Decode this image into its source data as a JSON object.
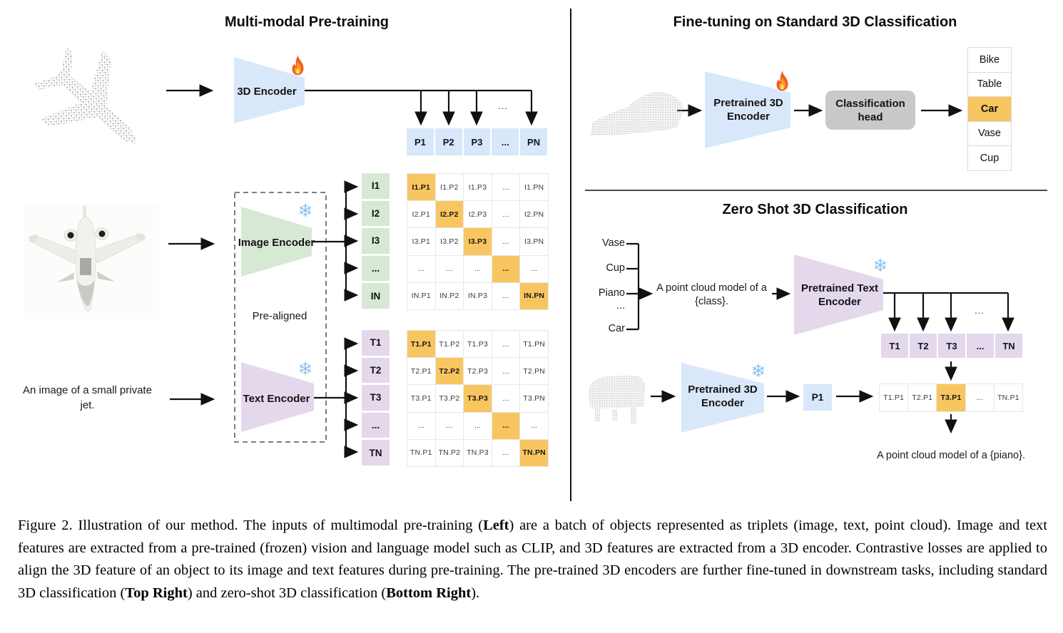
{
  "colors": {
    "blue": "#D9E7FA",
    "green": "#D7E8D5",
    "purple": "#E4D8EC",
    "highlight": "#F8C660",
    "head-gray": "#C9C9C9",
    "snow": "#8FC3ED"
  },
  "icons": {
    "snowflake": "❄"
  },
  "left": {
    "title": "Multi-modal Pre-training",
    "encoder3d_label": "3D Encoder",
    "image_encoder_label": "Image Encoder",
    "text_encoder_label": "Text Encoder",
    "prealigned_label": "Pre-aligned",
    "jet_caption": "An image of a small private jet.",
    "ellipsis": "...",
    "p_row": [
      "P1",
      "P2",
      "P3",
      "...",
      "PN"
    ],
    "i_labels": [
      "I1",
      "I2",
      "I3",
      "...",
      "IN"
    ],
    "t_labels": [
      "T1",
      "T2",
      "T3",
      "...",
      "TN"
    ],
    "i_matrix": [
      {
        "t": "I1.P1",
        "hl": true
      },
      {
        "t": "I1.P2"
      },
      {
        "t": "I1.P3"
      },
      {
        "t": "..."
      },
      {
        "t": "I1.PN"
      },
      {
        "t": "I2.P1"
      },
      {
        "t": "I2.P2",
        "hl": true
      },
      {
        "t": "I2.P3"
      },
      {
        "t": "..."
      },
      {
        "t": "I2.PN"
      },
      {
        "t": "I3.P1"
      },
      {
        "t": "I3.P2"
      },
      {
        "t": "I3.P3",
        "hl": true
      },
      {
        "t": "..."
      },
      {
        "t": "I3.PN"
      },
      {
        "t": "..."
      },
      {
        "t": "..."
      },
      {
        "t": "..."
      },
      {
        "t": "...",
        "hl": true
      },
      {
        "t": "..."
      },
      {
        "t": "IN.P1"
      },
      {
        "t": "IN.P2"
      },
      {
        "t": "IN.P3"
      },
      {
        "t": "..."
      },
      {
        "t": "IN.PN",
        "hl": true
      }
    ],
    "t_matrix": [
      {
        "t": "T1.P1",
        "hl": true
      },
      {
        "t": "T1.P2"
      },
      {
        "t": "T1.P3"
      },
      {
        "t": "..."
      },
      {
        "t": "T1.PN"
      },
      {
        "t": "T2.P1"
      },
      {
        "t": "T2.P2",
        "hl": true
      },
      {
        "t": "T2.P3"
      },
      {
        "t": "..."
      },
      {
        "t": "T2.PN"
      },
      {
        "t": "T3.P1"
      },
      {
        "t": "T3.P2"
      },
      {
        "t": "T3.P3",
        "hl": true
      },
      {
        "t": "..."
      },
      {
        "t": "T3.PN"
      },
      {
        "t": "..."
      },
      {
        "t": "..."
      },
      {
        "t": "..."
      },
      {
        "t": "...",
        "hl": true
      },
      {
        "t": "..."
      },
      {
        "t": "TN.P1"
      },
      {
        "t": "TN.P2"
      },
      {
        "t": "TN.P3"
      },
      {
        "t": "..."
      },
      {
        "t": "TN.PN",
        "hl": true
      }
    ]
  },
  "top_right": {
    "title": "Fine-tuning on Standard 3D Classification",
    "encoder_label": "Pretrained 3D Encoder",
    "head_label": "Classification head",
    "class_list": [
      {
        "t": "Bike"
      },
      {
        "t": "Table"
      },
      {
        "t": "Car",
        "hl": true
      },
      {
        "t": "Vase"
      },
      {
        "t": "Cup"
      }
    ]
  },
  "bottom_right": {
    "title": "Zero Shot 3D Classification",
    "prompt_classes": [
      "Vase",
      "Cup",
      "Piano",
      "...",
      "Car"
    ],
    "prompt_text": "A point cloud model of a {class}.",
    "text_encoder_label": "Pretrained Text Encoder",
    "encoder3d_label": "Pretrained 3D Encoder",
    "p1_label": "P1",
    "ellipsis": "...",
    "t_row": [
      "T1",
      "T2",
      "T3",
      "...",
      "TN"
    ],
    "result_row": [
      {
        "t": "T1.P1"
      },
      {
        "t": "T2.P1"
      },
      {
        "t": "T3.P1",
        "hl": true
      },
      {
        "t": "..."
      },
      {
        "t": "TN.P1"
      }
    ],
    "result_caption": "A point cloud model of a {piano}."
  },
  "figure_caption": {
    "segments": [
      {
        "t": "Figure 2. Illustration of our method. The inputs of multimodal pre-training ("
      },
      {
        "t": "Left",
        "b": true
      },
      {
        "t": ") are a batch of objects represented as triplets (image, text, point cloud). Image and text features are extracted from a pre-trained (frozen) vision and language model such as CLIP, and 3D features are extracted from a 3D encoder. Contrastive losses are applied to align the 3D feature of an object to its image and text features during pre-training. The pre-trained 3D encoders are further fine-tuned in downstream tasks, including standard 3D classification ("
      },
      {
        "t": "Top Right",
        "b": true
      },
      {
        "t": ") and zero-shot 3D classification ("
      },
      {
        "t": "Bottom Right",
        "b": true
      },
      {
        "t": ")."
      }
    ]
  }
}
